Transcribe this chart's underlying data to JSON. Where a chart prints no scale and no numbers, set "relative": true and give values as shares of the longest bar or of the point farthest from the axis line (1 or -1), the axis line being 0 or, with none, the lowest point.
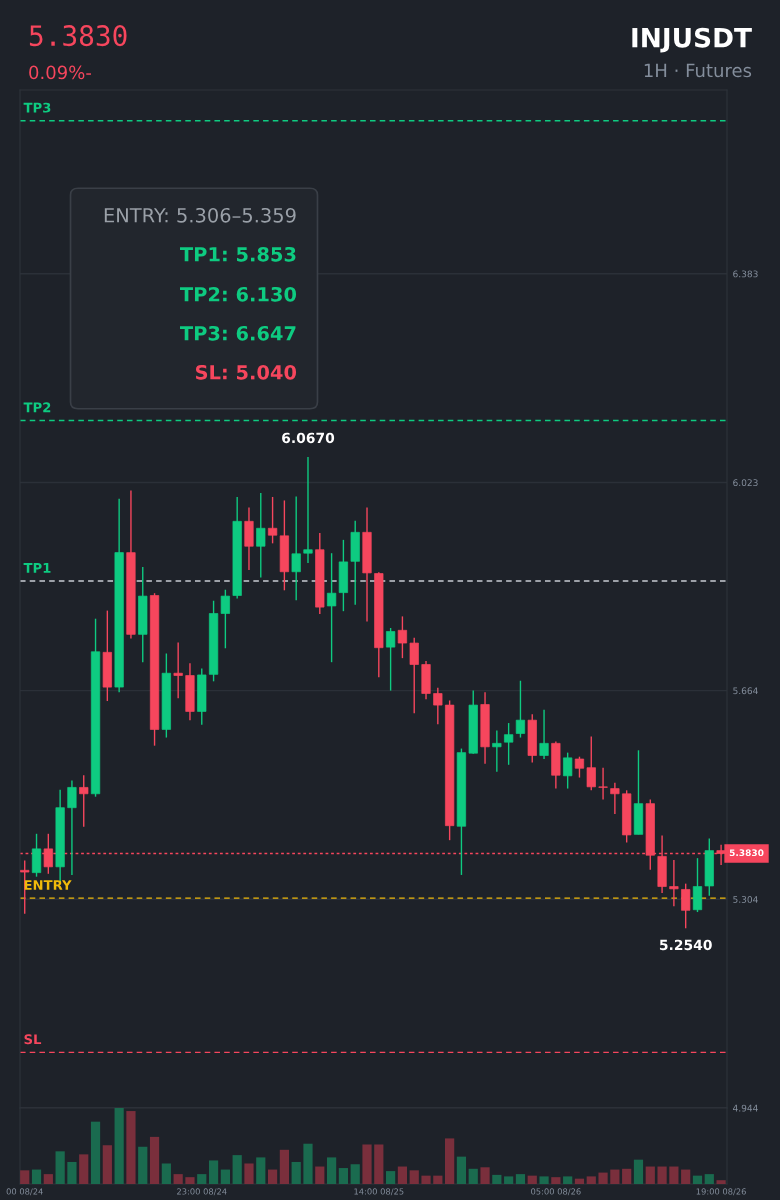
{
  "chart_data": [
    {
      "type": "candlestick",
      "title": "INJUSDT",
      "subtitle": "1H · Futures",
      "categories": [
        null,
        null,
        null,
        null,
        null,
        null,
        null,
        null,
        null,
        null,
        null,
        null,
        null,
        null,
        null,
        null,
        null,
        null,
        null,
        null,
        null,
        null,
        null,
        null,
        null,
        null,
        null,
        null,
        null,
        null,
        null,
        null,
        null,
        null,
        null,
        null,
        null,
        null,
        null,
        null,
        null,
        null,
        null,
        null,
        null,
        null,
        null,
        null,
        null,
        null,
        null,
        null,
        null,
        null,
        null,
        null,
        null,
        null,
        null,
        null
      ],
      "ohlc": [
        [
          5.354,
          5.371,
          5.279,
          5.351
        ],
        [
          5.35,
          5.417,
          5.343,
          5.391
        ],
        [
          5.391,
          5.417,
          5.348,
          5.36
        ],
        [
          5.36,
          5.493,
          5.33,
          5.462
        ],
        [
          5.462,
          5.509,
          5.346,
          5.497
        ],
        [
          5.497,
          5.518,
          5.429,
          5.486
        ],
        [
          5.486,
          5.788,
          5.481,
          5.731
        ],
        [
          5.73,
          5.802,
          5.646,
          5.67
        ],
        [
          5.67,
          5.995,
          5.661,
          5.902
        ],
        [
          5.902,
          6.009,
          5.754,
          5.761
        ],
        [
          5.761,
          5.877,
          5.713,
          5.827
        ],
        [
          5.828,
          5.832,
          5.569,
          5.597
        ],
        [
          5.597,
          5.728,
          5.583,
          5.694
        ],
        [
          5.694,
          5.747,
          5.651,
          5.69
        ],
        [
          5.69,
          5.711,
          5.613,
          5.628
        ],
        [
          5.628,
          5.702,
          5.605,
          5.691
        ],
        [
          5.692,
          5.819,
          5.68,
          5.797
        ],
        [
          5.797,
          5.838,
          5.737,
          5.827
        ],
        [
          5.828,
          5.998,
          5.823,
          5.956
        ],
        [
          5.956,
          5.98,
          5.872,
          5.913
        ],
        [
          5.913,
          6.005,
          5.859,
          5.944
        ],
        [
          5.944,
          5.998,
          5.918,
          5.932
        ],
        [
          5.931,
          5.992,
          5.837,
          5.869
        ],
        [
          5.869,
          5.999,
          5.82,
          5.9
        ],
        [
          5.901,
          6.067,
          5.884,
          5.907
        ],
        [
          5.907,
          5.936,
          5.796,
          5.808
        ],
        [
          5.81,
          5.901,
          5.713,
          5.832
        ],
        [
          5.833,
          5.924,
          5.801,
          5.886
        ],
        [
          5.887,
          5.957,
          5.812,
          5.937
        ],
        [
          5.937,
          5.98,
          5.783,
          5.867
        ],
        [
          5.866,
          5.868,
          5.687,
          5.738
        ],
        [
          5.739,
          5.772,
          5.664,
          5.766
        ],
        [
          5.768,
          5.792,
          5.72,
          5.746
        ],
        [
          5.746,
          5.755,
          5.625,
          5.709
        ],
        [
          5.709,
          5.715,
          5.649,
          5.659
        ],
        [
          5.659,
          5.669,
          5.606,
          5.639
        ],
        [
          5.639,
          5.647,
          5.406,
          5.431
        ],
        [
          5.43,
          5.564,
          5.346,
          5.557
        ],
        [
          5.556,
          5.664,
          5.555,
          5.639
        ],
        [
          5.64,
          5.661,
          5.538,
          5.567
        ],
        [
          5.567,
          5.595,
          5.524,
          5.573
        ],
        [
          5.575,
          5.608,
          5.536,
          5.588
        ],
        [
          5.59,
          5.681,
          5.583,
          5.613
        ],
        [
          5.613,
          5.623,
          5.54,
          5.552
        ],
        [
          5.552,
          5.631,
          5.546,
          5.573
        ],
        [
          5.573,
          5.576,
          5.495,
          5.518
        ],
        [
          5.517,
          5.557,
          5.495,
          5.548
        ],
        [
          5.546,
          5.55,
          5.514,
          5.53
        ],
        [
          5.531,
          5.585,
          5.492,
          5.498
        ],
        [
          5.498,
          5.531,
          5.476,
          5.497
        ],
        [
          5.495,
          5.505,
          5.451,
          5.486
        ],
        [
          5.486,
          5.492,
          5.402,
          5.415
        ],
        [
          5.416,
          5.561,
          5.416,
          5.469
        ],
        [
          5.469,
          5.476,
          5.355,
          5.38
        ],
        [
          5.378,
          5.414,
          5.315,
          5.326
        ],
        [
          5.326,
          5.372,
          5.292,
          5.322
        ],
        [
          5.321,
          5.331,
          5.254,
          5.285
        ],
        [
          5.286,
          5.375,
          5.282,
          5.326
        ],
        [
          5.327,
          5.409,
          5.31,
          5.388
        ],
        [
          5.388,
          5.398,
          5.363,
          5.383
        ]
      ],
      "colors": [
        "#f6465d",
        "#0ecb81",
        "#f6465d",
        "#0ecb81",
        "#0ecb81",
        "#f6465d",
        "#0ecb81",
        "#f6465d",
        "#0ecb81",
        "#f6465d",
        "#0ecb81",
        "#f6465d",
        "#0ecb81",
        "#f6465d",
        "#f6465d",
        "#0ecb81",
        "#0ecb81",
        "#0ecb81",
        "#0ecb81",
        "#f6465d",
        "#0ecb81",
        "#f6465d",
        "#f6465d",
        "#0ecb81",
        "#0ecb81",
        "#f6465d",
        "#0ecb81",
        "#0ecb81",
        "#0ecb81",
        "#f6465d",
        "#f6465d",
        "#0ecb81",
        "#f6465d",
        "#f6465d",
        "#f6465d",
        "#f6465d",
        "#f6465d",
        "#0ecb81",
        "#0ecb81",
        "#f6465d",
        "#0ecb81",
        "#0ecb81",
        "#0ecb81",
        "#f6465d",
        "#0ecb81",
        "#f6465d",
        "#0ecb81",
        "#f6465d",
        "#f6465d",
        "#f6465d",
        "#f6465d",
        "#f6465d",
        "#0ecb81",
        "#f6465d",
        "#f6465d",
        "#f6465d",
        "#f6465d",
        "#0ecb81",
        "#0ecb81",
        "#f6465d"
      ],
      "ylim": [
        4.944,
        6.7
      ],
      "yticks": [
        4.944,
        5.304,
        5.664,
        6.023,
        6.383
      ],
      "tick_labels": "y",
      "grid": "y",
      "ref_lines": [
        {
          "axis": "y",
          "value": 6.647,
          "label": "TP3",
          "color": "#0ecb81",
          "line_style": "dashed"
        },
        {
          "axis": "y",
          "value": 6.13,
          "label": "TP2",
          "color": "#0ecb81",
          "line_style": "dashed"
        },
        {
          "axis": "y",
          "value": 5.853,
          "label": "TP1",
          "color": "#c8ccd2",
          "line_style": "dashed"
        },
        {
          "axis": "y",
          "value": 5.306,
          "label": "ENTRY",
          "color": "#f0b90b",
          "line_style": "dashed"
        },
        {
          "axis": "y",
          "value": 5.04,
          "label": "SL",
          "color": "#f6465d",
          "line_style": "dashed"
        },
        {
          "axis": "y",
          "value": 5.383,
          "label": "5.3830",
          "color": "#f6465d",
          "line_style": "dotted"
        }
      ],
      "annotations": [
        "5.3830",
        "0.09%-",
        "ENTRY: 5.306–5.359",
        "TP1: 5.853",
        "TP2: 6.130",
        "TP3: 6.647",
        "SL: 5.040",
        {
          "text": "6.0670",
          "y": 6.067
        },
        {
          "text": "5.2540",
          "y": 5.254
        }
      ]
    },
    {
      "type": "bar",
      "relative": true,
      "categories": [
        "00 08/24",
        null,
        null,
        null,
        null,
        null,
        null,
        null,
        null,
        null,
        null,
        null,
        null,
        null,
        null,
        "23:00 08/24",
        null,
        null,
        null,
        null,
        null,
        null,
        null,
        null,
        null,
        null,
        null,
        null,
        null,
        null,
        "14:00 08/25",
        null,
        null,
        null,
        null,
        null,
        null,
        null,
        null,
        null,
        null,
        null,
        null,
        null,
        null,
        "05:00 08/26",
        null,
        null,
        null,
        null,
        null,
        null,
        null,
        null,
        null,
        null,
        null,
        null,
        null,
        "19:00 08/26"
      ],
      "values": [
        0.18,
        0.19,
        0.13,
        0.43,
        0.29,
        0.39,
        0.82,
        0.51,
        1,
        0.96,
        0.49,
        0.62,
        0.27,
        0.13,
        0.09,
        0.13,
        0.31,
        0.19,
        0.38,
        0.27,
        0.35,
        0.19,
        0.45,
        0.29,
        0.53,
        0.23,
        0.35,
        0.21,
        0.26,
        0.52,
        0.52,
        0.17,
        0.23,
        0.18,
        0.11,
        0.11,
        0.6,
        0.36,
        0.2,
        0.22,
        0.12,
        0.1,
        0.13,
        0.11,
        0.1,
        0.09,
        0.1,
        0.07,
        0.1,
        0.15,
        0.19,
        0.2,
        0.32,
        0.23,
        0.23,
        0.23,
        0.19,
        0.11,
        0.13,
        0.05
      ],
      "colors": [
        "#7a2f3c",
        "#1a6b4f",
        "#7a2f3c",
        "#1a6b4f",
        "#1a6b4f",
        "#7a2f3c",
        "#1a6b4f",
        "#7a2f3c",
        "#1a6b4f",
        "#7a2f3c",
        "#1a6b4f",
        "#7a2f3c",
        "#1a6b4f",
        "#7a2f3c",
        "#7a2f3c",
        "#1a6b4f",
        "#1a6b4f",
        "#1a6b4f",
        "#1a6b4f",
        "#7a2f3c",
        "#1a6b4f",
        "#7a2f3c",
        "#7a2f3c",
        "#1a6b4f",
        "#1a6b4f",
        "#7a2f3c",
        "#1a6b4f",
        "#1a6b4f",
        "#1a6b4f",
        "#7a2f3c",
        "#7a2f3c",
        "#1a6b4f",
        "#7a2f3c",
        "#7a2f3c",
        "#7a2f3c",
        "#7a2f3c",
        "#7a2f3c",
        "#1a6b4f",
        "#1a6b4f",
        "#7a2f3c",
        "#1a6b4f",
        "#1a6b4f",
        "#1a6b4f",
        "#7a2f3c",
        "#1a6b4f",
        "#7a2f3c",
        "#1a6b4f",
        "#7a2f3c",
        "#7a2f3c",
        "#7a2f3c",
        "#7a2f3c",
        "#7a2f3c",
        "#1a6b4f",
        "#7a2f3c",
        "#7a2f3c",
        "#7a2f3c",
        "#7a2f3c",
        "#1a6b4f",
        "#1a6b4f",
        "#7a2f3c"
      ],
      "tick_labels": "x"
    }
  ]
}
